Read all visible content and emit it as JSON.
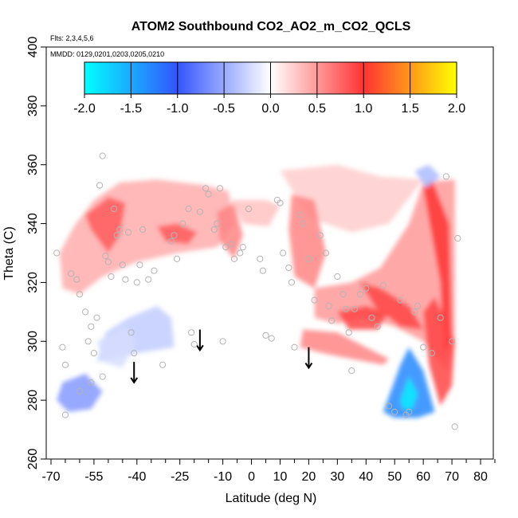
{
  "chart_data": {
    "type": "heatmap",
    "title": "ATOM2 Southbound CO2_AO2_m_CO2_QCLS",
    "annotations": {
      "flights": "Flts: 2,3,4,5,6",
      "dates": "MMDD: 0129,0201,0203,0205,0210"
    },
    "xlabel": "Latitude (deg N)",
    "ylabel": "Theta (C)",
    "xlim": [
      -70,
      85
    ],
    "ylim": [
      260,
      400
    ],
    "x_ticks": [
      -70,
      -55,
      -40,
      -25,
      -10,
      0,
      10,
      20,
      30,
      40,
      50,
      60,
      70,
      80
    ],
    "x_tick_labels": [
      "-70",
      "-55",
      "-40",
      "-25",
      "-10",
      "0",
      "10",
      "20",
      "30",
      "40",
      "50",
      "60",
      "70",
      "80"
    ],
    "x_minor_ticks": [
      -65,
      -60,
      -50,
      -45,
      -35,
      -30,
      -20,
      -15,
      -5,
      5,
      15,
      25,
      35,
      45,
      55,
      65,
      75,
      85
    ],
    "y_ticks": [
      260,
      280,
      300,
      320,
      340,
      360,
      380,
      400
    ],
    "y_tick_labels": [
      "260",
      "280",
      "300",
      "320",
      "340",
      "360",
      "380",
      "400"
    ],
    "colorbar": {
      "range": [
        -2,
        2
      ],
      "ticks": [
        -2.0,
        -1.5,
        -1.0,
        -0.5,
        0.0,
        0.5,
        1.0,
        1.5,
        2.0
      ],
      "tick_labels": [
        "-2.0",
        "-1.5",
        "-1.0",
        "-0.5",
        "0.0",
        "0.5",
        "1.0",
        "1.5",
        "2.0"
      ],
      "colors": [
        "#00ffff",
        "#3355ff",
        "#ffffff",
        "#ff3333",
        "#ffff00"
      ]
    },
    "regions": [
      {
        "value": 0.4,
        "points": [
          [
            -67,
            330
          ],
          [
            -62,
            339
          ],
          [
            -55,
            348
          ],
          [
            -46,
            354
          ],
          [
            -33,
            355
          ],
          [
            -16,
            353
          ],
          [
            -8,
            351
          ],
          [
            -6,
            340
          ],
          [
            -12,
            332
          ],
          [
            -26,
            330
          ],
          [
            -40,
            327
          ],
          [
            -52,
            322
          ],
          [
            -60,
            316
          ],
          [
            -66,
            318
          ]
        ]
      },
      {
        "value": 0.8,
        "points": [
          [
            -58,
            343
          ],
          [
            -50,
            349
          ],
          [
            -44,
            347
          ],
          [
            -46,
            336
          ],
          [
            -50,
            330
          ],
          [
            -56,
            338
          ]
        ]
      },
      {
        "value": 0.8,
        "points": [
          [
            -33,
            339
          ],
          [
            -26,
            340
          ],
          [
            -19,
            337
          ],
          [
            -22,
            333
          ],
          [
            -30,
            334
          ]
        ]
      },
      {
        "value": 0.6,
        "points": [
          [
            -12,
            344
          ],
          [
            -6,
            347
          ],
          [
            -3,
            336
          ],
          [
            -6,
            328
          ],
          [
            -11,
            334
          ]
        ]
      },
      {
        "value": 0.3,
        "points": [
          [
            -7,
            348
          ],
          [
            5,
            348
          ],
          [
            10,
            346
          ],
          [
            6,
            339
          ],
          [
            -3,
            340
          ]
        ]
      },
      {
        "value": 0.25,
        "points": [
          [
            10,
            358
          ],
          [
            30,
            360
          ],
          [
            45,
            356
          ],
          [
            60,
            355
          ],
          [
            48,
            340
          ],
          [
            35,
            337
          ],
          [
            20,
            342
          ]
        ]
      },
      {
        "value": 0.6,
        "points": [
          [
            14,
            350
          ],
          [
            22,
            348
          ],
          [
            26,
            330
          ],
          [
            22,
            318
          ],
          [
            15,
            322
          ],
          [
            13,
            338
          ]
        ]
      },
      {
        "value": 0.5,
        "points": [
          [
            22,
            318
          ],
          [
            35,
            320
          ],
          [
            45,
            325
          ],
          [
            55,
            340
          ],
          [
            60,
            354
          ],
          [
            71,
            355
          ],
          [
            71,
            300
          ],
          [
            68,
            290
          ],
          [
            60,
            300
          ],
          [
            50,
            305
          ],
          [
            40,
            308
          ],
          [
            30,
            306
          ],
          [
            22,
            308
          ]
        ]
      },
      {
        "value": 1.0,
        "points": [
          [
            60,
            352
          ],
          [
            63,
            355
          ],
          [
            69,
            340
          ],
          [
            70,
            300
          ],
          [
            67,
            296
          ],
          [
            66,
            320
          ]
        ]
      },
      {
        "value": 0.9,
        "points": [
          [
            38,
            320
          ],
          [
            45,
            318
          ],
          [
            55,
            312
          ],
          [
            60,
            304
          ],
          [
            52,
            305
          ],
          [
            43,
            312
          ]
        ]
      },
      {
        "value": 0.9,
        "points": [
          [
            30,
            310
          ],
          [
            40,
            312
          ],
          [
            48,
            310
          ],
          [
            44,
            304
          ],
          [
            34,
            304
          ]
        ]
      },
      {
        "value": 0.6,
        "points": [
          [
            18,
            304
          ],
          [
            30,
            303
          ],
          [
            40,
            298
          ],
          [
            48,
            294
          ],
          [
            46,
            292
          ],
          [
            35,
            294
          ],
          [
            25,
            296
          ],
          [
            17,
            298
          ]
        ]
      },
      {
        "value": 0.9,
        "points": [
          [
            60,
            310
          ],
          [
            64,
            315
          ],
          [
            71,
            300
          ],
          [
            70,
            285
          ],
          [
            66,
            278
          ],
          [
            62,
            292
          ]
        ]
      },
      {
        "value": -0.3,
        "points": [
          [
            -54,
            293
          ],
          [
            -40,
            296
          ],
          [
            -27,
            298
          ],
          [
            -28,
            308
          ],
          [
            -33,
            312
          ],
          [
            -43,
            308
          ],
          [
            -51,
            303
          ]
        ]
      },
      {
        "value": -0.6,
        "points": [
          [
            -66,
            286
          ],
          [
            -58,
            289
          ],
          [
            -52,
            283
          ],
          [
            -56,
            277
          ],
          [
            -64,
            276
          ],
          [
            -68,
            280
          ]
        ]
      },
      {
        "value": -0.2,
        "points": [
          [
            -54,
            300
          ],
          [
            -44,
            305
          ],
          [
            -40,
            300
          ],
          [
            -45,
            291
          ],
          [
            -52,
            293
          ]
        ]
      },
      {
        "value": -1.3,
        "points": [
          [
            46,
            276
          ],
          [
            52,
            292
          ],
          [
            55,
            298
          ],
          [
            60,
            290
          ],
          [
            64,
            276
          ],
          [
            58,
            274
          ],
          [
            50,
            274
          ]
        ]
      },
      {
        "value": -1.9,
        "points": [
          [
            52,
            280
          ],
          [
            55,
            288
          ],
          [
            58,
            282
          ],
          [
            56,
            277
          ],
          [
            53,
            277
          ]
        ]
      },
      {
        "value": -0.4,
        "points": [
          [
            57,
            358
          ],
          [
            62,
            360
          ],
          [
            66,
            356
          ],
          [
            61,
            352
          ]
        ]
      }
    ],
    "arrows": [
      {
        "x": -41,
        "y_top": 293,
        "y_bottom": 286
      },
      {
        "x": -18,
        "y_top": 304,
        "y_bottom": 297
      },
      {
        "x": 20,
        "y_top": 298,
        "y_bottom": 291
      }
    ],
    "sample_points": [
      [
        -68,
        330
      ],
      [
        -66,
        298
      ],
      [
        -65,
        292
      ],
      [
        -63,
        323
      ],
      [
        -61,
        321
      ],
      [
        -60,
        316
      ],
      [
        -58,
        310
      ],
      [
        -57,
        300
      ],
      [
        -56,
        305
      ],
      [
        -55,
        296
      ],
      [
        -54,
        308
      ],
      [
        -53,
        353
      ],
      [
        -52,
        363
      ],
      [
        -51,
        329
      ],
      [
        -50,
        327
      ],
      [
        -49,
        322
      ],
      [
        -48,
        345
      ],
      [
        -47,
        336
      ],
      [
        -46,
        338
      ],
      [
        -45,
        326
      ],
      [
        -44,
        321
      ],
      [
        -43,
        337
      ],
      [
        -42,
        303
      ],
      [
        -41,
        296
      ],
      [
        -40,
        320
      ],
      [
        -39,
        326
      ],
      [
        -38,
        338
      ],
      [
        -36,
        321
      ],
      [
        -34,
        324
      ],
      [
        -31,
        292
      ],
      [
        -28,
        334
      ],
      [
        -27,
        336
      ],
      [
        -26,
        328
      ],
      [
        -24,
        340
      ],
      [
        -22,
        345
      ],
      [
        -21,
        303
      ],
      [
        -20,
        299
      ],
      [
        -18,
        344
      ],
      [
        -16,
        352
      ],
      [
        -15,
        350
      ],
      [
        -13,
        338
      ],
      [
        -12,
        340
      ],
      [
        -11,
        352
      ],
      [
        -10,
        300
      ],
      [
        -9,
        332
      ],
      [
        -7,
        333
      ],
      [
        -6,
        328
      ],
      [
        -4,
        330
      ],
      [
        -3,
        332
      ],
      [
        -1,
        345
      ],
      [
        3,
        328
      ],
      [
        4,
        324
      ],
      [
        5,
        302
      ],
      [
        7,
        301
      ],
      [
        9,
        348
      ],
      [
        10,
        347
      ],
      [
        11,
        330
      ],
      [
        13,
        325
      ],
      [
        14,
        320
      ],
      [
        15,
        298
      ],
      [
        17,
        343
      ],
      [
        18,
        340
      ],
      [
        20,
        328
      ],
      [
        22,
        314
      ],
      [
        24,
        336
      ],
      [
        26,
        330
      ],
      [
        27,
        312
      ],
      [
        28,
        307
      ],
      [
        30,
        322
      ],
      [
        32,
        316
      ],
      [
        33,
        311
      ],
      [
        34,
        303
      ],
      [
        35,
        290
      ],
      [
        36,
        311
      ],
      [
        38,
        316
      ],
      [
        40,
        318
      ],
      [
        42,
        308
      ],
      [
        44,
        305
      ],
      [
        46,
        319
      ],
      [
        48,
        278
      ],
      [
        50,
        276
      ],
      [
        52,
        314
      ],
      [
        54,
        275
      ],
      [
        55,
        276
      ],
      [
        57,
        310
      ],
      [
        58,
        312
      ],
      [
        60,
        298
      ],
      [
        63,
        296
      ],
      [
        66,
        308
      ],
      [
        68,
        356
      ],
      [
        70,
        300
      ],
      [
        71,
        271
      ],
      [
        72,
        335
      ],
      [
        -65,
        275
      ],
      [
        -60,
        283
      ],
      [
        -56,
        286
      ],
      [
        -52,
        288
      ]
    ]
  }
}
